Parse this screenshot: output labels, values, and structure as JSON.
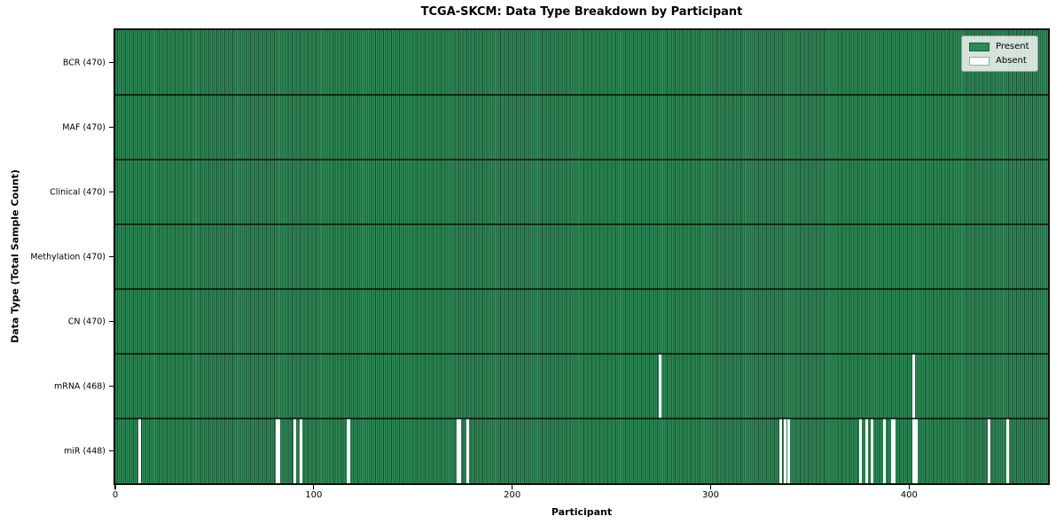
{
  "chart_data": {
    "type": "heatmap",
    "title": "TCGA-SKCM: Data Type Breakdown by Participant",
    "xlabel": "Participant",
    "ylabel": "Data Type (Total Sample Count)",
    "n_participants": 470,
    "x_ticks": [
      0,
      100,
      200,
      300,
      400
    ],
    "x_range": [
      0,
      470
    ],
    "grid": false,
    "legend_position": "upper right",
    "rows": [
      {
        "label": "BCR (470)",
        "data_type": "BCR",
        "present_count": 470,
        "absent_count": 0,
        "absent_participants": []
      },
      {
        "label": "MAF (470)",
        "data_type": "MAF",
        "present_count": 470,
        "absent_count": 0,
        "absent_participants": []
      },
      {
        "label": "Clinical (470)",
        "data_type": "Clinical",
        "present_count": 470,
        "absent_count": 0,
        "absent_participants": []
      },
      {
        "label": "Methylation (470)",
        "data_type": "Methylation",
        "present_count": 470,
        "absent_count": 0,
        "absent_participants": []
      },
      {
        "label": "CN (470)",
        "data_type": "CN",
        "present_count": 470,
        "absent_count": 0,
        "absent_participants": []
      },
      {
        "label": "mRNA (468)",
        "data_type": "mRNA",
        "present_count": 468,
        "absent_count": 2,
        "absent_participants": [
          274,
          402
        ]
      },
      {
        "label": "miR (448)",
        "data_type": "miR",
        "present_count": 448,
        "absent_count": 22,
        "absent_participants": [
          12,
          81,
          82,
          90,
          93,
          117,
          172,
          173,
          177,
          335,
          337,
          339,
          375,
          378,
          381,
          387,
          391,
          392,
          402,
          403,
          440,
          449
        ]
      }
    ],
    "legend": [
      {
        "label": "Present",
        "color": "#2e8b57"
      },
      {
        "label": "Absent",
        "color": "#ffffff"
      }
    ],
    "colors": {
      "present": "#2e8b57",
      "absent": "#ffffff",
      "cell_edge": "rgba(10, 25, 16, 0.55)",
      "row_divider": "rgba(8, 20, 12, 0.8)",
      "plot_border": "#0d0d0d",
      "legend_bg": "rgba(255, 255, 255, 0.8)",
      "legend_border": "#9e9e9e",
      "swatch_edge": "rgba(0, 0, 0, 0.35)"
    }
  }
}
